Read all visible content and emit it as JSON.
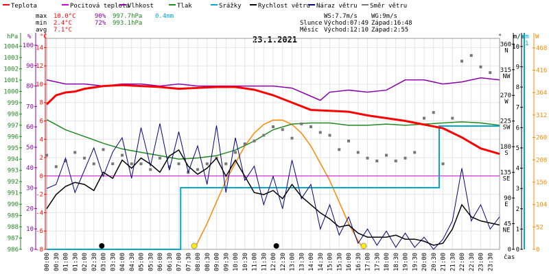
{
  "chart_data": {
    "type": "line",
    "title": "23.1.2021",
    "legend": [
      {
        "name": "Teplota",
        "color": "#ff0000"
      },
      {
        "name": "Pocitová teplota",
        "color": "#cc00cc"
      },
      {
        "name": "Vlhkost",
        "color": "#8800aa"
      },
      {
        "name": "Tlak",
        "color": "#228822"
      },
      {
        "name": "Srážky",
        "color": "#00aacc"
      },
      {
        "name": "Rychlost větru",
        "color": "#000000"
      },
      {
        "name": "Náraz větru",
        "color": "#000080"
      },
      {
        "name": "Směr větru",
        "color": "#777777"
      }
    ],
    "stats": {
      "max_label": "max",
      "min_label": "min",
      "avg_label": "avg",
      "max": {
        "temp": "10.0°C",
        "hum": "90%",
        "press": "997.7hPa",
        "rain": "0.4mm"
      },
      "min": {
        "temp": "2.4°C",
        "hum": "72%",
        "press": "993.1hPa"
      },
      "avg": {
        "temp": "7.1°C"
      }
    },
    "wind_info": {
      "ws": "WS:7.7m/s",
      "wg": "WG:9m/s"
    },
    "sun": {
      "label": "Slunce",
      "rise": "Východ:07:49",
      "set": "Západ:16:48"
    },
    "moon": {
      "label": "Měsíc",
      "rise": "Východ:12:10",
      "set": "Západ:2:55"
    },
    "axes": {
      "hPa": {
        "unit": "hPa",
        "ticks": [
          986,
          987,
          988,
          989,
          990,
          991,
          992,
          993,
          994,
          995,
          996,
          997,
          998,
          999,
          1000,
          1001,
          1002,
          1003,
          1004
        ],
        "color": "#228822"
      },
      "percent": {
        "unit": "%",
        "ticks": [
          0,
          10,
          20,
          30,
          40,
          50,
          60,
          70,
          80,
          90,
          100
        ],
        "color": "#8800aa"
      },
      "celsius": {
        "unit": "°C",
        "ticks": [
          -8,
          -6,
          -4,
          -2,
          0,
          2,
          4,
          6,
          8,
          10,
          12,
          14
        ],
        "color": "#ff0000"
      },
      "direction": {
        "unit": "°",
        "ticks": [
          0,
          45,
          90,
          135,
          180,
          225,
          270,
          315,
          360
        ],
        "labels": [
          "",
          "NE",
          "E",
          "SE",
          "S",
          "SW",
          "W",
          "NW",
          "N"
        ],
        "color": "#000000"
      },
      "wind": {
        "unit": "m/s",
        "ticks": [
          0,
          1,
          2,
          3,
          4,
          5,
          6,
          7,
          8,
          9,
          10
        ],
        "color": "#000000"
      },
      "rain": {
        "unit": "mm",
        "tick": "1",
        "color": "#00aacc"
      },
      "solar": {
        "unit": "W",
        "ticks": [
          0,
          52,
          104,
          156,
          208,
          260,
          312,
          364,
          416,
          468
        ],
        "color": "#ff8800"
      },
      "x_label": "čas",
      "x_ticks": [
        "00:00",
        "00:30",
        "01:00",
        "01:30",
        "02:00",
        "02:30",
        "03:00",
        "03:30",
        "04:00",
        "04:30",
        "05:00",
        "05:30",
        "06:00",
        "06:30",
        "07:00",
        "07:30",
        "08:00",
        "08:30",
        "09:00",
        "09:30",
        "10:00",
        "10:30",
        "11:00",
        "11:30",
        "12:00",
        "12:30",
        "13:00",
        "13:30",
        "14:00",
        "14:30",
        "15:00",
        "15:30",
        "16:00",
        "16:30",
        "17:00",
        "17:30",
        "18:00",
        "18:30",
        "19:00",
        "19:30",
        "20:00",
        "20:30",
        "21:00",
        "21:30",
        "22:00",
        "22:30",
        "23:00",
        "23:30"
      ]
    },
    "series": {
      "temperature": {
        "name": "Teplota",
        "x": [
          0,
          0.5,
          1,
          1.5,
          2,
          3,
          4,
          5,
          6,
          7,
          8,
          9,
          10,
          11,
          12,
          13,
          14,
          15,
          16,
          17,
          18,
          19,
          20,
          21,
          22,
          23,
          24
        ],
        "y": [
          7.8,
          8.8,
          9.1,
          9.2,
          9.5,
          9.8,
          9.9,
          9.8,
          9.7,
          9.5,
          9.6,
          9.7,
          9.7,
          9.4,
          8.8,
          8.0,
          7.2,
          7.1,
          7.0,
          6.6,
          6.3,
          6.0,
          5.6,
          5.2,
          4.2,
          3.0,
          2.4
        ]
      },
      "feels_like": {
        "name": "Pocitová teplota",
        "x": [
          0,
          24
        ],
        "y": [
          0,
          0
        ]
      },
      "humidity": {
        "name": "Vlhkost",
        "x": [
          0,
          1,
          2,
          3,
          4,
          5,
          6,
          7,
          8,
          9,
          10,
          11,
          12,
          13,
          14,
          14.5,
          15,
          16,
          17,
          18,
          19,
          20,
          21,
          22,
          23,
          24
        ],
        "y": [
          83,
          81,
          81,
          80,
          81,
          81,
          80,
          81,
          80,
          80,
          80,
          80,
          80,
          79,
          75,
          73,
          77,
          78,
          77,
          78,
          83,
          83,
          81,
          82,
          84,
          83
        ]
      },
      "pressure": {
        "name": "Tlak",
        "x": [
          0,
          1,
          2,
          3,
          4,
          5,
          6,
          7,
          8,
          9,
          10,
          11,
          12,
          13,
          14,
          15,
          16,
          17,
          18,
          19,
          20,
          21,
          22,
          23,
          24
        ],
        "y": [
          997.5,
          996.6,
          996.0,
          995.4,
          994.9,
          994.6,
          994.3,
          994.0,
          994.1,
          994.3,
          994.8,
          995.6,
          996.6,
          997.1,
          997.2,
          997.2,
          997.0,
          997.0,
          997.1,
          997.0,
          997.1,
          997.2,
          997.3,
          997.2,
          997.0
        ]
      },
      "rain": {
        "name": "Srážky",
        "x": [
          0,
          7.1,
          7.1,
          20.8,
          20.8,
          24
        ],
        "y": [
          0,
          0,
          0.3,
          0.3,
          0.6,
          0.6
        ]
      },
      "wind_speed": {
        "name": "Rychlost větru",
        "x": [
          0,
          0.5,
          1,
          1.5,
          2,
          2.5,
          3,
          3.5,
          4,
          4.5,
          5,
          5.5,
          6,
          6.5,
          7,
          7.5,
          8,
          8.5,
          9,
          9.5,
          10,
          10.5,
          11,
          11.5,
          12,
          12.5,
          13,
          13.5,
          14,
          14.5,
          15,
          15.5,
          16,
          16.5,
          17,
          17.5,
          18,
          18.5,
          19,
          19.5,
          20,
          20.5,
          21,
          21.5,
          22,
          22.5,
          23,
          23.5,
          24
        ],
        "y": [
          2,
          2.7,
          3.1,
          3.3,
          3.2,
          2.9,
          3.8,
          3.5,
          4.4,
          4.0,
          4.5,
          4.2,
          3.8,
          4.6,
          4.9,
          4.1,
          3.7,
          4.0,
          4.5,
          3.6,
          4.4,
          3.6,
          2.8,
          2.7,
          2.9,
          2.5,
          3.2,
          2.6,
          2.2,
          1.8,
          1.5,
          1.1,
          1.2,
          0.8,
          0.6,
          0.6,
          0.6,
          0.7,
          0.5,
          0.5,
          0.4,
          0.2,
          0.3,
          1.0,
          2.2,
          1.6,
          1.4,
          1.3,
          1.2
        ]
      },
      "wind_gust": {
        "name": "Náraz větru",
        "x": [
          0,
          0.5,
          1,
          1.5,
          2,
          2.5,
          3,
          3.5,
          4,
          4.5,
          5,
          5.5,
          6,
          6.5,
          7,
          7.5,
          8,
          8.5,
          9,
          9.5,
          10,
          10.5,
          11,
          11.5,
          12,
          12.5,
          13,
          13.5,
          14,
          14.5,
          15,
          15.5,
          16,
          16.5,
          17,
          17.5,
          18,
          18.5,
          19,
          19.5,
          20,
          20.5,
          21,
          21.5,
          22,
          22.5,
          23,
          23.5,
          24
        ],
        "y": [
          3,
          3.2,
          4.5,
          2.8,
          3.9,
          5.0,
          3.6,
          4.8,
          5.5,
          3.5,
          6.0,
          4.1,
          6.2,
          3.9,
          5.8,
          3.8,
          5.1,
          3.2,
          6.1,
          2.8,
          5.5,
          3.4,
          4.1,
          2.2,
          3.6,
          2.0,
          4.4,
          2.5,
          3.2,
          1.0,
          2.2,
          0.7,
          1.6,
          0.3,
          1.0,
          0.2,
          0.9,
          0.1,
          0.8,
          0.1,
          0.6,
          0.0,
          0.5,
          1.4,
          4.0,
          1.4,
          2.2,
          1.0,
          1.6
        ]
      },
      "wind_dir": {
        "name": "Směr větru",
        "x": [
          0,
          0.5,
          1,
          1.5,
          2,
          2.5,
          3,
          3.5,
          4,
          4.5,
          5,
          5.5,
          6,
          6.5,
          7,
          7.5,
          8,
          8.5,
          9,
          9.5,
          10,
          10.5,
          11,
          11.5,
          12,
          12.5,
          13,
          13.5,
          14,
          14.5,
          15,
          15.5,
          16,
          16.5,
          17,
          17.5,
          18,
          18.5,
          19,
          19.5,
          20,
          20.5,
          21,
          21.5,
          22,
          22.5,
          23,
          23.5
        ],
        "y": [
          165,
          145,
          155,
          170,
          160,
          150,
          175,
          150,
          165,
          150,
          150,
          140,
          160,
          145,
          150,
          135,
          140,
          150,
          160,
          150,
          170,
          185,
          190,
          200,
          215,
          210,
          195,
          220,
          215,
          205,
          200,
          175,
          190,
          170,
          160,
          155,
          165,
          155,
          160,
          170,
          230,
          240,
          150,
          230,
          330,
          340,
          320,
          310
        ]
      },
      "solar": {
        "name": "Slunce",
        "x": [
          7.82,
          8.5,
          9,
          9.5,
          10,
          10.5,
          11,
          11.5,
          12,
          12.5,
          13,
          13.5,
          14,
          14.5,
          15,
          15.5,
          16,
          16.5,
          16.8
        ],
        "y": [
          0,
          60,
          110,
          160,
          200,
          240,
          270,
          290,
          300,
          300,
          290,
          270,
          240,
          200,
          160,
          110,
          60,
          20,
          0
        ]
      }
    },
    "markers": {
      "sunrise": 7.82,
      "sunset": 16.8,
      "moonset": 2.92,
      "moonrise": 12.17
    }
  }
}
